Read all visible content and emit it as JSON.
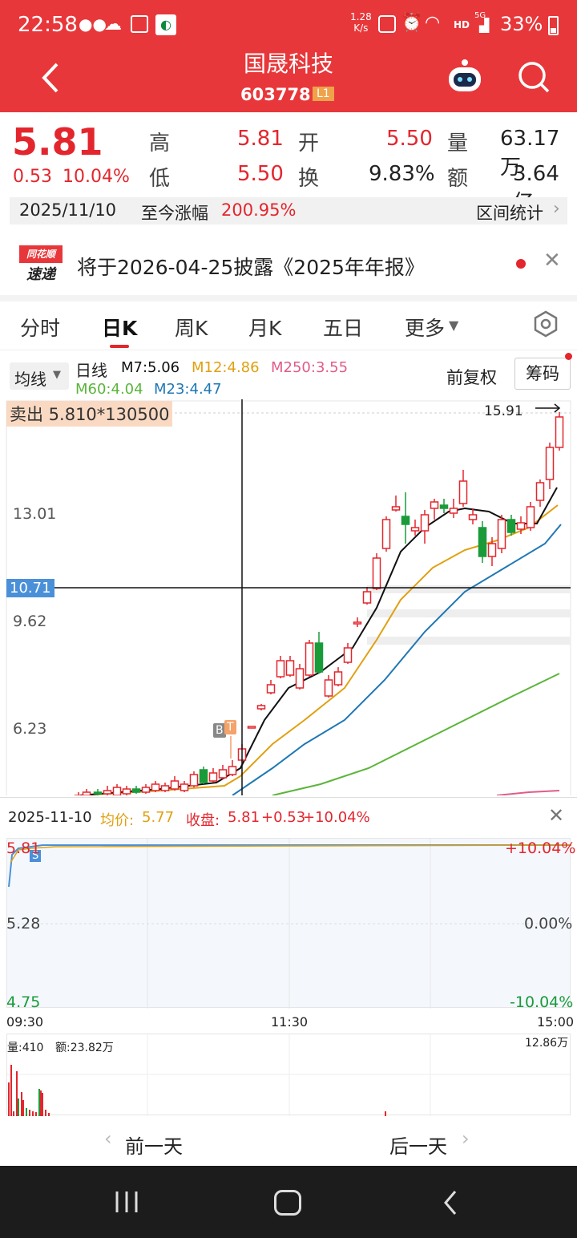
{
  "status": {
    "time": "22:58",
    "speed_top": "1.28",
    "speed_bottom": "K/s",
    "net_badge": "HD",
    "signal": "5G",
    "battery": "33%"
  },
  "header": {
    "title": "国晟科技",
    "code": "603778",
    "level": "L1"
  },
  "quote": {
    "price": "5.81",
    "change": "0.53",
    "change_pct": "10.04%",
    "high_label": "高",
    "high": "5.81",
    "low_label": "低",
    "low": "5.50",
    "open_label": "开",
    "open": "5.50",
    "turnover_label": "换",
    "turnover": "9.83%",
    "volume_label": "量",
    "volume": "63.17万",
    "amount_label": "额",
    "amount": "3.64亿",
    "date": "2025/11/10",
    "since_label": "至今涨幅",
    "since_value": "200.95%",
    "interval_label": "区间统计"
  },
  "notice": {
    "logo_top": "同花顺",
    "logo_bottom": "速递",
    "text": "将于2026-04-25披露《2025年年报》"
  },
  "tabs": [
    "分时",
    "日K",
    "周K",
    "月K",
    "五日",
    "更多"
  ],
  "kline": {
    "ma_button": "均线",
    "period": "日线",
    "m7": "M7:5.06",
    "m12": "M12:4.86",
    "m250": "M250:3.55",
    "m60": "M60:4.04",
    "m23": "M23:4.47",
    "fq": "前复权",
    "chip": "筹码",
    "sell": "卖出 5.810*130500",
    "max_price": "15.91",
    "y_labels": [
      "13.01",
      "9.62",
      "6.23"
    ],
    "cursor_price": "10.71",
    "mark_b": "B",
    "mark_t": "T"
  },
  "intraday": {
    "date": "2025-11-10",
    "avg_label": "均价:",
    "avg": "5.77",
    "close_label": "收盘:",
    "close": "5.81",
    "close_change": "+0.53",
    "close_pct": "+10.04%",
    "y_top": "5.81",
    "y_mid": "5.28",
    "y_bottom": "4.75",
    "pct_top": "+10.04%",
    "pct_mid": "0.00%",
    "pct_bottom": "-10.04%",
    "time_start": "09:30",
    "time_mid": "11:30",
    "time_end": "15:00",
    "mark_s": "S",
    "vol_label": "量:410",
    "amt_label": "额:23.82万",
    "vol_max": "12.86万"
  },
  "daynav": {
    "prev": "前一天",
    "next": "后一天"
  },
  "colors": {
    "up": "#e3262d",
    "down": "#1a9b3a",
    "header": "#e8373a"
  }
}
